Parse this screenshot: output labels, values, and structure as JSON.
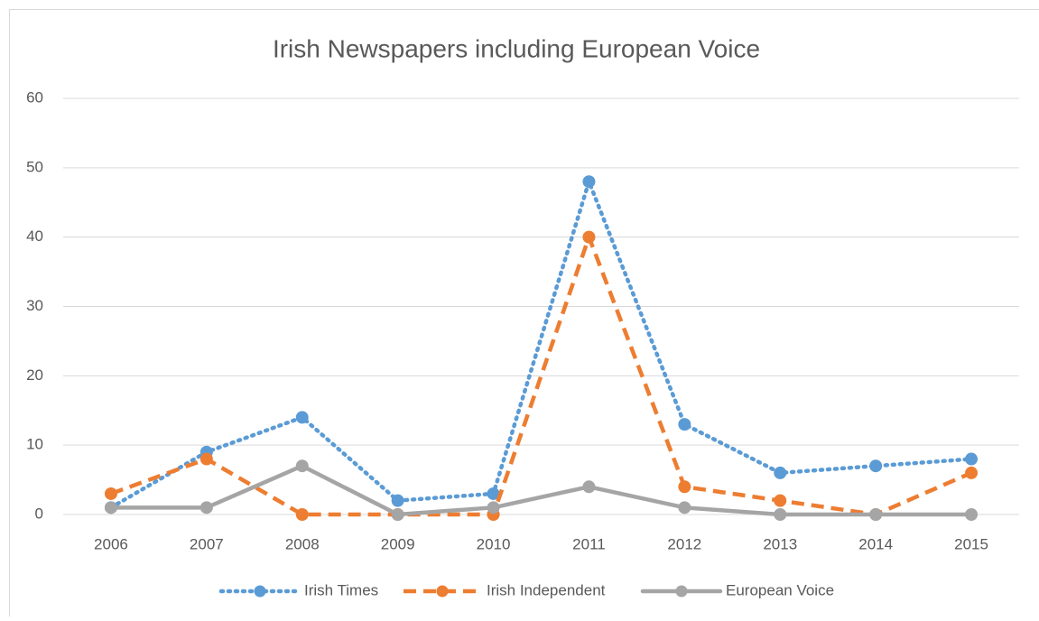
{
  "chart_data": {
    "type": "line",
    "title": "Irish Newspapers including European Voice",
    "categories": [
      "2006",
      "2007",
      "2008",
      "2009",
      "2010",
      "2011",
      "2012",
      "2013",
      "2014",
      "2015"
    ],
    "series": [
      {
        "name": "Irish Times",
        "color": "#5b9bd5",
        "dash": "dotted",
        "values": [
          1,
          9,
          14,
          2,
          3,
          48,
          13,
          6,
          7,
          8
        ]
      },
      {
        "name": "Irish Independent",
        "color": "#ed7d31",
        "dash": "dashed",
        "values": [
          3,
          8,
          0,
          0,
          0,
          40,
          4,
          2,
          0,
          6
        ]
      },
      {
        "name": "European Voice",
        "color": "#a5a5a5",
        "dash": "solid",
        "values": [
          1,
          1,
          7,
          0,
          1,
          4,
          1,
          0,
          0,
          0
        ]
      }
    ],
    "ylim": [
      0,
      60
    ],
    "yticks": [
      0,
      10,
      20,
      30,
      40,
      50,
      60
    ],
    "grid": true,
    "legend": "bottom"
  }
}
